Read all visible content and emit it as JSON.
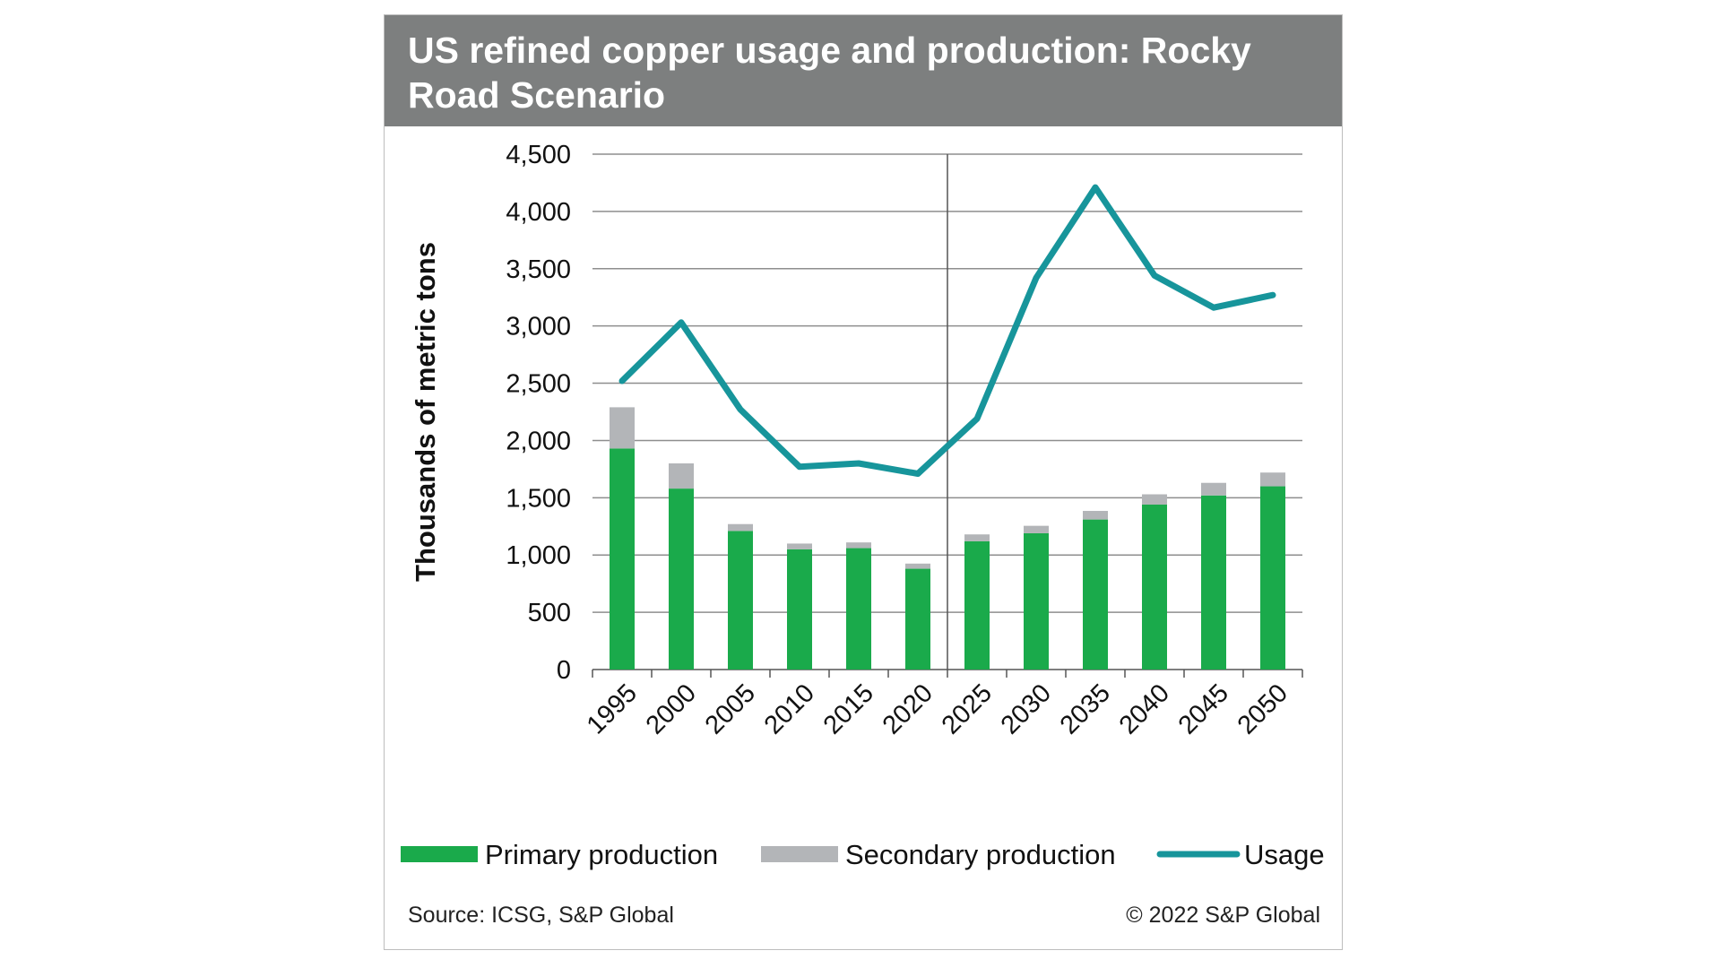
{
  "chart_data": {
    "type": "bar",
    "title": "US refined copper usage and production: Rocky Road Scenario",
    "ylabel": "Thousands of metric tons",
    "xlabel": "",
    "ylim": [
      0,
      4500
    ],
    "yticks": [
      0,
      500,
      1000,
      1500,
      2000,
      2500,
      3000,
      3500,
      4000,
      4500
    ],
    "ytick_labels": [
      "0",
      "500",
      "1,000",
      "1,500",
      "2,000",
      "2,500",
      "3,000",
      "3,500",
      "4,000",
      "4,500"
    ],
    "categories": [
      "1995",
      "2000",
      "2005",
      "2010",
      "2015",
      "2020",
      "2025",
      "2030",
      "2035",
      "2040",
      "2045",
      "2050"
    ],
    "stacked": true,
    "grid": true,
    "legend_position": "bottom",
    "series": [
      {
        "name": "Primary production",
        "type": "bar",
        "color": "#1aaa4b",
        "values": [
          1930,
          1580,
          1210,
          1050,
          1060,
          880,
          1120,
          1190,
          1310,
          1440,
          1520,
          1600
        ]
      },
      {
        "name": "Secondary production",
        "type": "bar",
        "color": "#b3b5b8",
        "values": [
          360,
          220,
          60,
          50,
          50,
          45,
          60,
          65,
          75,
          90,
          110,
          120
        ]
      },
      {
        "name": "Usage",
        "type": "line",
        "color": "#17959b",
        "values": [
          2520,
          3030,
          2270,
          1770,
          1800,
          1710,
          2190,
          3420,
          4210,
          3440,
          3160,
          3270
        ]
      }
    ]
  },
  "footer": {
    "source": "Source: ICSG, S&P Global",
    "copyright": "© 2022 S&P Global"
  }
}
